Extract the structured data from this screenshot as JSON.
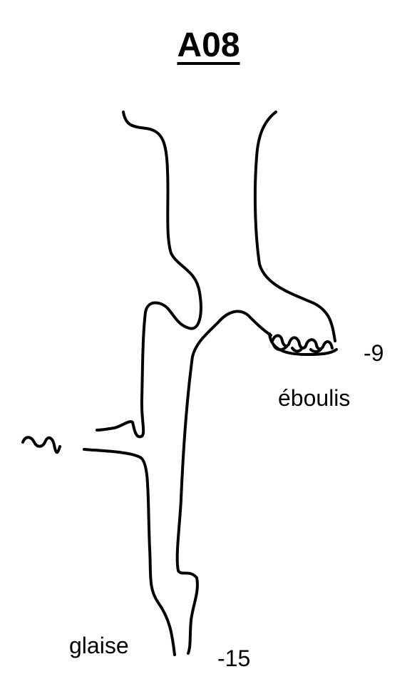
{
  "title": "A08",
  "labels": {
    "depth_top": "-9",
    "rubble": "éboulis",
    "clay": "glaise",
    "depth_bottom": "-15"
  },
  "colors": {
    "ink": "#000000",
    "background": "#ffffff"
  }
}
